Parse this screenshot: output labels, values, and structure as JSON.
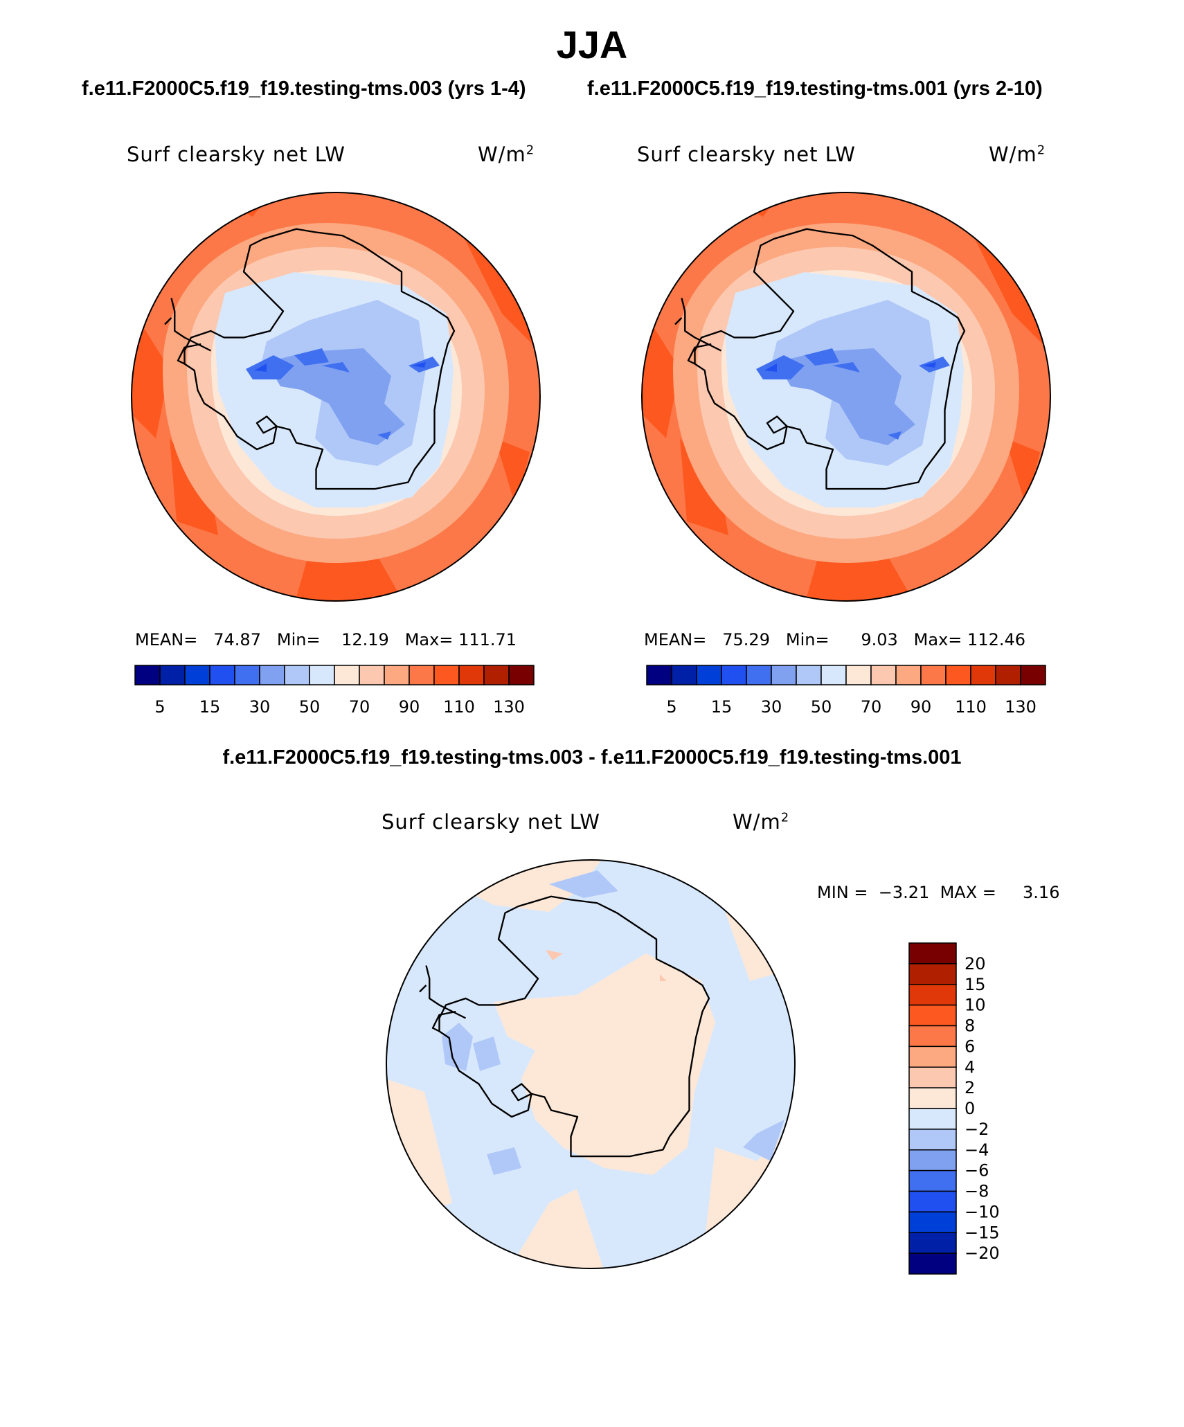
{
  "title": "JJA",
  "panels": [
    {
      "case_label": "f.e11.F2000C5.f19_f19.testing-tms.003 (yrs 1-4)",
      "variable": "Surf clearsky net LW",
      "units_base": "W/m",
      "units_exp": "2",
      "stats": {
        "mean_label": "MEAN=",
        "mean": "74.87",
        "min_label": "Min=",
        "min": "12.19",
        "max_label": "Max=",
        "max": "111.71"
      }
    },
    {
      "case_label": "f.e11.F2000C5.f19_f19.testing-tms.001 (yrs 2-10)",
      "variable": "Surf clearsky net LW",
      "units_base": "W/m",
      "units_exp": "2",
      "stats": {
        "mean_label": "MEAN=",
        "mean": "75.29",
        "min_label": "Min=",
        "min": "9.03",
        "max_label": "Max=",
        "max": "112.46"
      }
    }
  ],
  "difference": {
    "title": "f.e11.F2000C5.f19_f19.testing-tms.003 - f.e11.F2000C5.f19_f19.testing-tms.001",
    "variable": "Surf clearsky net LW",
    "units_base": "W/m",
    "units_exp": "2",
    "min_label": "MIN =",
    "min": "−3.21",
    "max_label": "MAX =",
    "max": "3.16"
  },
  "colorbar_main": {
    "colors": [
      "#000080",
      "#0020a8",
      "#0040d8",
      "#2050f0",
      "#4070f0",
      "#80a0f0",
      "#b0c8f8",
      "#d8e8fc",
      "#fde8d8",
      "#fcc8b0",
      "#fca880",
      "#fc7848",
      "#fc5820",
      "#e03808",
      "#b02000",
      "#780000"
    ],
    "labels": [
      "5",
      "15",
      "30",
      "50",
      "70",
      "90",
      "110",
      "130"
    ]
  },
  "colorbar_diff": {
    "colors": [
      "#780000",
      "#b02000",
      "#e03808",
      "#fc5820",
      "#fc7848",
      "#fca880",
      "#fcc8b0",
      "#fde8d8",
      "#d8e8fc",
      "#b0c8f8",
      "#80a0f0",
      "#4070f0",
      "#2050f0",
      "#0040d8",
      "#0020a8",
      "#000080"
    ],
    "labels": [
      "20",
      "15",
      "10",
      "8",
      "6",
      "4",
      "2",
      "0",
      "−2",
      "−4",
      "−6",
      "−8",
      "−10",
      "−15",
      "−20"
    ]
  }
}
